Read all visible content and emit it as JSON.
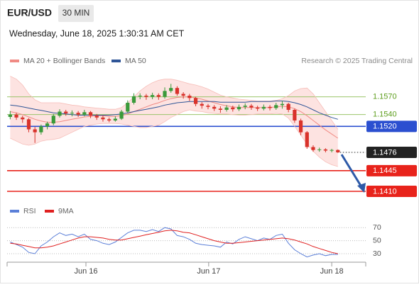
{
  "header": {
    "symbol": "EUR/USD",
    "timeframe": "30 MIN",
    "datetime": "Wednesday, June 18, 2025 1:30:31 AM CET"
  },
  "chart_data": [
    {
      "type": "candlestick",
      "source": "Research © 2025 Trading Central",
      "xlim": [
        -0.5,
        57.5
      ],
      "ylim": [
        1.1395,
        1.162
      ],
      "up_color": "#3a9a3a",
      "down_color": "#d9322b",
      "open": [
        1.1536,
        1.154,
        1.1535,
        1.1532,
        1.1515,
        1.151,
        1.152,
        1.1525,
        1.1538,
        1.1545,
        1.1542,
        1.1543,
        1.154,
        1.1544,
        1.1538,
        1.1535,
        1.1532,
        1.153,
        1.1533,
        1.1545,
        1.156,
        1.1571,
        1.1572,
        1.157,
        1.1573,
        1.157,
        1.158,
        1.1585,
        1.1575,
        1.1572,
        1.1568,
        1.1558,
        1.1555,
        1.1553,
        1.155,
        1.1548,
        1.1552,
        1.1549,
        1.1553,
        1.1555,
        1.1552,
        1.155,
        1.1553,
        1.1551,
        1.1556,
        1.1558,
        1.1548,
        1.153,
        1.151,
        1.1485,
        1.148,
        1.1481,
        1.1479,
        1.148
      ],
      "high": [
        1.1546,
        1.1543,
        1.1538,
        1.1534,
        1.1519,
        1.1523,
        1.1528,
        1.1541,
        1.1549,
        1.1548,
        1.1547,
        1.1546,
        1.1548,
        1.1546,
        1.1541,
        1.1538,
        1.1535,
        1.1537,
        1.1548,
        1.1564,
        1.1576,
        1.1576,
        1.1575,
        1.1577,
        1.1576,
        1.1586,
        1.1592,
        1.1588,
        1.1578,
        1.1575,
        1.157,
        1.1561,
        1.1558,
        1.1556,
        1.1554,
        1.1556,
        1.1555,
        1.1557,
        1.1559,
        1.1558,
        1.1555,
        1.1557,
        1.1556,
        1.156,
        1.1563,
        1.156,
        1.155,
        1.1533,
        1.1512,
        1.1488,
        1.1484,
        1.1483,
        1.1482,
        1.1481
      ],
      "low": [
        1.1532,
        1.1531,
        1.1526,
        1.151,
        1.1492,
        1.1506,
        1.1515,
        1.1522,
        1.1535,
        1.1538,
        1.1537,
        1.1536,
        1.1537,
        1.1534,
        1.1531,
        1.1528,
        1.1527,
        1.1528,
        1.1531,
        1.1543,
        1.1557,
        1.1566,
        1.1565,
        1.1566,
        1.1565,
        1.1567,
        1.1577,
        1.1572,
        1.1567,
        1.1563,
        1.1554,
        1.155,
        1.1549,
        1.1546,
        1.1543,
        1.1545,
        1.1545,
        1.1546,
        1.1549,
        1.1548,
        1.1546,
        1.1547,
        1.1547,
        1.1548,
        1.155,
        1.1544,
        1.1526,
        1.1505,
        1.1482,
        1.1477,
        1.1477,
        1.1476,
        1.1476,
        1.1475
      ],
      "close": [
        1.154,
        1.1535,
        1.1532,
        1.1515,
        1.151,
        1.152,
        1.1525,
        1.1538,
        1.1545,
        1.1542,
        1.1543,
        1.154,
        1.1544,
        1.1538,
        1.1535,
        1.1532,
        1.153,
        1.1533,
        1.1545,
        1.156,
        1.1571,
        1.1572,
        1.157,
        1.1573,
        1.157,
        1.158,
        1.1585,
        1.1575,
        1.1572,
        1.1568,
        1.1558,
        1.1555,
        1.1553,
        1.155,
        1.1548,
        1.1552,
        1.1549,
        1.1553,
        1.1555,
        1.1552,
        1.155,
        1.1553,
        1.1551,
        1.1556,
        1.1558,
        1.1548,
        1.153,
        1.151,
        1.1485,
        1.148,
        1.1481,
        1.1479,
        1.148,
        1.1476
      ],
      "series": [
        {
          "name": "MA 20 + Bollinger Bands",
          "color": "#f08a84",
          "band_color": "#fde3e1",
          "values": [
            1.1545,
            1.1543,
            1.154,
            1.1536,
            1.1532,
            1.1529,
            1.1527,
            1.1527,
            1.1528,
            1.153,
            1.1532,
            1.1534,
            1.1536,
            1.1537,
            1.1538,
            1.1538,
            1.1537,
            1.1537,
            1.1538,
            1.1541,
            1.1545,
            1.1549,
            1.1553,
            1.1557,
            1.156,
            1.1564,
            1.1567,
            1.1569,
            1.157,
            1.157,
            1.1568,
            1.1566,
            1.1563,
            1.156,
            1.1557,
            1.1555,
            1.1553,
            1.1552,
            1.1552,
            1.1552,
            1.1552,
            1.1552,
            1.1552,
            1.1553,
            1.1554,
            1.1553,
            1.155,
            1.1545,
            1.1538,
            1.153,
            1.1522,
            1.1514,
            1.1507,
            1.15
          ],
          "upper": [
            1.1605,
            1.16,
            1.159,
            1.1575,
            1.1565,
            1.156,
            1.156,
            1.156,
            1.156,
            1.1558,
            1.1556,
            1.1555,
            1.1553,
            1.1552,
            1.1551,
            1.155,
            1.1549,
            1.1549,
            1.1552,
            1.156,
            1.157,
            1.158,
            1.1588,
            1.1594,
            1.1598,
            1.16,
            1.16,
            1.1598,
            1.1595,
            1.1592,
            1.159,
            1.1587,
            1.1583,
            1.1578,
            1.1573,
            1.157,
            1.1568,
            1.1566,
            1.1565,
            1.1564,
            1.1563,
            1.1563,
            1.1563,
            1.1564,
            1.1567,
            1.1572,
            1.158,
            1.1584,
            1.1585,
            1.1575,
            1.156,
            1.1545,
            1.153,
            1.1515
          ],
          "lower": [
            1.15,
            1.1495,
            1.149,
            1.1488,
            1.149,
            1.1495,
            1.1497,
            1.1498,
            1.15,
            1.1505,
            1.151,
            1.1515,
            1.152,
            1.1522,
            1.1524,
            1.1525,
            1.1525,
            1.1525,
            1.1524,
            1.1522,
            1.152,
            1.1518,
            1.1518,
            1.152,
            1.1522,
            1.1528,
            1.1535,
            1.154,
            1.1545,
            1.1548,
            1.1546,
            1.1545,
            1.1543,
            1.1542,
            1.1541,
            1.1541,
            1.154,
            1.1539,
            1.1539,
            1.154,
            1.1541,
            1.1541,
            1.1541,
            1.1542,
            1.1541,
            1.1534,
            1.152,
            1.1505,
            1.149,
            1.1478,
            1.1468,
            1.146,
            1.1455,
            1.1452
          ]
        },
        {
          "name": "MA 50",
          "color": "#2f5597",
          "values": [
            1.1556,
            1.1555,
            1.1553,
            1.1551,
            1.1549,
            1.1547,
            1.1545,
            1.1543,
            1.1542,
            1.1541,
            1.154,
            1.1539,
            1.1539,
            1.1539,
            1.1539,
            1.1539,
            1.1539,
            1.154,
            1.1541,
            1.1543,
            1.1545,
            1.1547,
            1.1549,
            1.1551,
            1.1553,
            1.1556,
            1.1558,
            1.156,
            1.1561,
            1.1562,
            1.1562,
            1.1562,
            1.1562,
            1.1562,
            1.1561,
            1.1561,
            1.1561,
            1.1561,
            1.1561,
            1.1562,
            1.1562,
            1.1562,
            1.1562,
            1.1563,
            1.1563,
            1.1562,
            1.156,
            1.1557,
            1.1553,
            1.1548,
            1.1543,
            1.1539,
            1.1535,
            1.1532
          ]
        }
      ],
      "levels": [
        {
          "value": 1.157,
          "label": "1.1570",
          "color": "#9cc46a",
          "text_color": "#5e9e1e",
          "boxed": false
        },
        {
          "value": 1.154,
          "label": "1.1540",
          "color": "#9cc46a",
          "text_color": "#5e9e1e",
          "boxed": false
        },
        {
          "value": 1.152,
          "label": "1.1520",
          "color": "#2b4fd0",
          "text_color": "#ffffff",
          "boxed": true
        },
        {
          "value": 1.1476,
          "label": "1.1476",
          "color": "#222222",
          "text_color": "#ffffff",
          "boxed": true,
          "dotted": true
        },
        {
          "value": 1.1445,
          "label": "1.1445",
          "color": "#e8231b",
          "text_color": "#ffffff",
          "boxed": true
        },
        {
          "value": 1.141,
          "label": "1.1410",
          "color": "#e8231b",
          "text_color": "#ffffff",
          "boxed": true
        }
      ]
    },
    {
      "type": "line",
      "xlim": [
        -0.5,
        57.5
      ],
      "ylim": [
        17,
        80
      ],
      "yticks": [
        70,
        50,
        30
      ],
      "xticks": [
        {
          "value": 12.25,
          "label": "Jun 16"
        },
        {
          "value": 32.1,
          "label": "Jun 17"
        },
        {
          "value": 52.0,
          "label": "Jun 18"
        }
      ],
      "series": [
        {
          "name": "RSI",
          "color": "#5b7fd8",
          "values": [
            48,
            44,
            40,
            32,
            30,
            42,
            48,
            56,
            62,
            58,
            60,
            56,
            60,
            52,
            50,
            46,
            44,
            48,
            55,
            62,
            66,
            66,
            64,
            67,
            64,
            70,
            68,
            58,
            56,
            52,
            46,
            44,
            43,
            42,
            40,
            48,
            45,
            52,
            56,
            53,
            50,
            54,
            52,
            58,
            60,
            46,
            36,
            30,
            25,
            28,
            30,
            27,
            29,
            29
          ]
        },
        {
          "name": "9MA",
          "color": "#e02020",
          "values": [
            46,
            45,
            43,
            41,
            39,
            39,
            40,
            42,
            45,
            48,
            51,
            54,
            56,
            56,
            55,
            54,
            52,
            51,
            51,
            53,
            55,
            57,
            59,
            61,
            63,
            65,
            66,
            65,
            63,
            62,
            59,
            56,
            53,
            50,
            48,
            46,
            46,
            47,
            48,
            49,
            50,
            51,
            52,
            53,
            54,
            53,
            51,
            48,
            45,
            41,
            38,
            35,
            32,
            30
          ]
        }
      ]
    }
  ]
}
